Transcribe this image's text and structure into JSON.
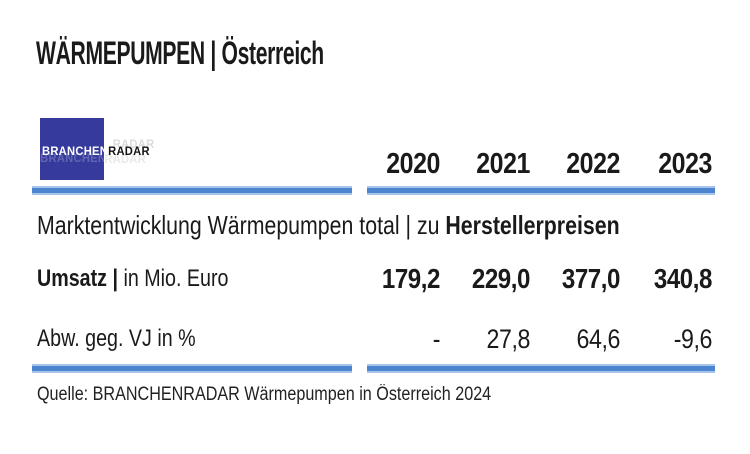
{
  "header": {
    "title": "WÄRMEPUMPEN | Österreich"
  },
  "logo": {
    "text_white": "BRANCHEN",
    "text_black": "RADAR"
  },
  "table": {
    "years": [
      "2020",
      "2021",
      "2022",
      "2023"
    ],
    "section": {
      "regular": "Marktentwicklung Wärmepumpen total | zu ",
      "bold": "Herstellerpreisen"
    },
    "rows": [
      {
        "label_bold": "Umsatz | ",
        "label_regular": "in Mio. Euro",
        "values": [
          "179,2",
          "229,0",
          "377,0",
          "340,8"
        ]
      },
      {
        "label_bold": "",
        "label_regular": "Abw. geg. VJ in %",
        "values": [
          "-",
          "27,8",
          "64,6",
          "-9,6"
        ]
      }
    ]
  },
  "footer": {
    "source": "Quelle: BRANCHENRADAR Wärmepumpen in Österreich 2024"
  },
  "colors": {
    "rule_blue_core": "#4c84cf",
    "rule_blue_edge": "#a6c3e8",
    "logo_blue": "#373a9d",
    "text": "#1a1a1a"
  },
  "chart_data": {
    "type": "table",
    "title": "WÄRMEPUMPEN | Österreich",
    "section": "Marktentwicklung Wärmepumpen total | zu Herstellerpreisen",
    "columns": [
      "2020",
      "2021",
      "2022",
      "2023"
    ],
    "rows": [
      {
        "label": "Umsatz | in Mio. Euro",
        "values": [
          179.2,
          229.0,
          377.0,
          340.8
        ]
      },
      {
        "label": "Abw. geg. VJ in %",
        "values": [
          null,
          27.8,
          64.6,
          -9.6
        ]
      }
    ],
    "source": "Quelle: BRANCHENRADAR Wärmepumpen in Österreich 2024"
  }
}
